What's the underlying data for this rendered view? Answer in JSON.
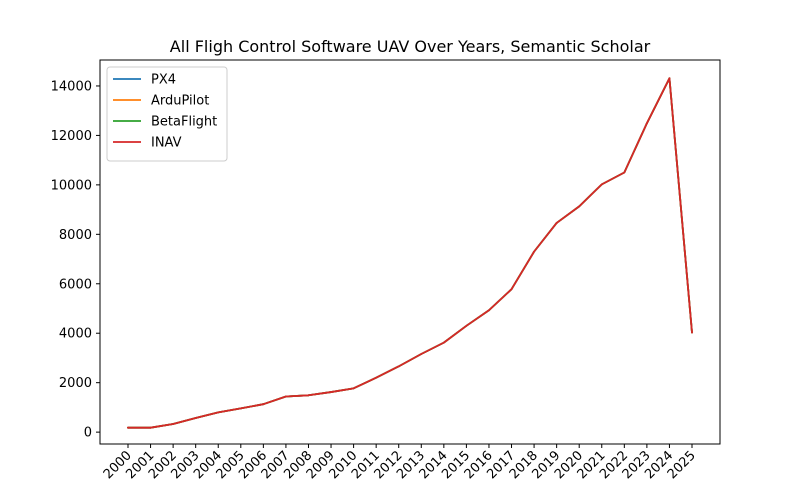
{
  "chart_data": {
    "type": "line",
    "title": "All Fligh Control Software UAV Over Years, Semantic Scholar",
    "xlabel": "",
    "ylabel": "",
    "x": [
      "2000",
      "2001",
      "2002",
      "2003",
      "2004",
      "2005",
      "2006",
      "2007",
      "2008",
      "2009",
      "2010",
      "2011",
      "2012",
      "2013",
      "2014",
      "2015",
      "2016",
      "2017",
      "2018",
      "2019",
      "2020",
      "2021",
      "2022",
      "2023",
      "2024",
      "2025"
    ],
    "ylim": [
      -480,
      15050
    ],
    "yticks": [
      0,
      2000,
      4000,
      6000,
      8000,
      10000,
      12000,
      14000
    ],
    "yticklabels": [
      "0",
      "2000",
      "4000",
      "6000",
      "8000",
      "10000",
      "12000",
      "14000"
    ],
    "grid": false,
    "legend_position": "top-left",
    "series": [
      {
        "name": "PX4",
        "color": "#1f77b4",
        "values": [
          180,
          180,
          330,
          570,
          800,
          960,
          1130,
          1440,
          1490,
          1620,
          1770,
          2200,
          2660,
          3160,
          3620,
          4300,
          4930,
          5780,
          7300,
          8460,
          9130,
          10020,
          10500,
          12490,
          14310,
          4030
        ]
      },
      {
        "name": "ArduPilot",
        "color": "#ff7f0e",
        "values": [
          180,
          180,
          330,
          570,
          800,
          960,
          1130,
          1440,
          1490,
          1620,
          1770,
          2200,
          2660,
          3160,
          3620,
          4300,
          4930,
          5780,
          7300,
          8460,
          9130,
          10020,
          10500,
          12490,
          14310,
          4030
        ]
      },
      {
        "name": "BetaFlight",
        "color": "#2ca02c",
        "values": [
          180,
          180,
          330,
          570,
          800,
          960,
          1130,
          1440,
          1490,
          1620,
          1770,
          2200,
          2660,
          3160,
          3620,
          4300,
          4930,
          5780,
          7300,
          8460,
          9130,
          10020,
          10500,
          12490,
          14310,
          4030
        ]
      },
      {
        "name": "INAV",
        "color": "#d62728",
        "values": [
          180,
          180,
          330,
          570,
          800,
          960,
          1130,
          1440,
          1490,
          1620,
          1770,
          2200,
          2660,
          3160,
          3620,
          4300,
          4930,
          5780,
          7300,
          8460,
          9130,
          10020,
          10500,
          12490,
          14310,
          4030
        ]
      }
    ]
  }
}
